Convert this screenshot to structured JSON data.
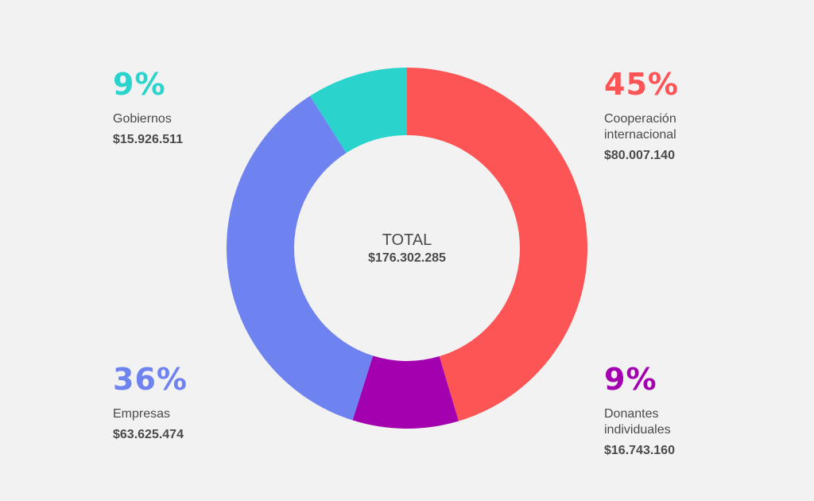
{
  "chart_data": {
    "type": "pie",
    "start_angle_deg": 0,
    "direction": "clockwise",
    "segments": [
      {
        "key": "coop",
        "percent_label": "45%",
        "name": "Cooperación\ninternacional",
        "amount": "$80.007.140",
        "value": 80007140,
        "color": "#fd5456"
      },
      {
        "key": "don",
        "percent_label": "9%",
        "name": "Donantes\nindividuales",
        "amount": "$16.743.160",
        "value": 16743160,
        "color": "#a300b0"
      },
      {
        "key": "emp",
        "percent_label": "36%",
        "name": "Empresas",
        "amount": "$63.625.474",
        "value": 63625474,
        "color": "#6e83f0"
      },
      {
        "key": "gob",
        "percent_label": "9%",
        "name": "Gobiernos",
        "amount": "$15.926.511",
        "value": 15926511,
        "color": "#2ad4cc"
      }
    ],
    "total": {
      "label": "TOTAL",
      "amount": "$176.302.285"
    }
  }
}
